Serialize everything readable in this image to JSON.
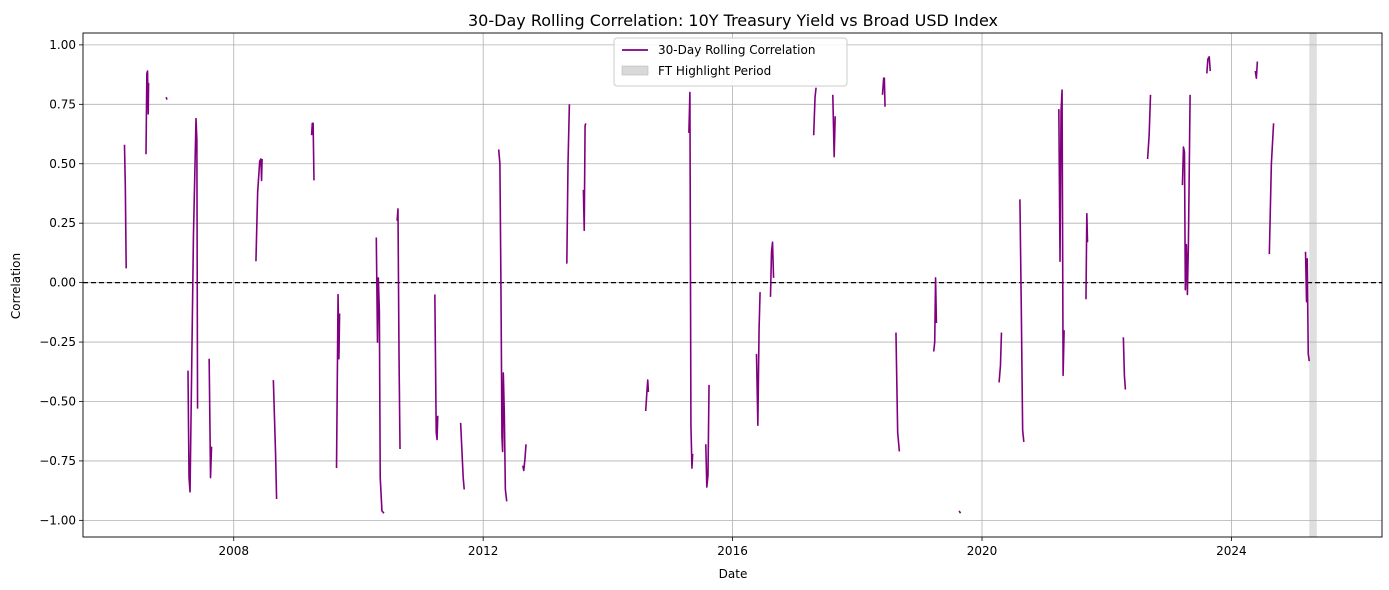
{
  "chart_data": {
    "type": "line",
    "title": "30-Day Rolling Correlation: 10Y Treasury Yield vs Broad USD Index",
    "xlabel": "Date",
    "ylabel": "Correlation",
    "xlim": [
      "2005-08-01",
      "2026-06-01"
    ],
    "ylim": [
      -1.07,
      1.05
    ],
    "x_ticks": [
      "2008",
      "2012",
      "2016",
      "2020",
      "2024"
    ],
    "y_ticks": [
      "−1.00",
      "−0.75",
      "−0.50",
      "−0.25",
      "0.00",
      "0.25",
      "0.50",
      "0.75",
      "1.00"
    ],
    "y_tick_values": [
      -1.0,
      -0.75,
      -0.5,
      -0.25,
      0.0,
      0.25,
      0.5,
      0.75,
      1.0
    ],
    "grid": true,
    "legend_position": "top-center",
    "reference_line": {
      "y": 0.0,
      "style": "dashed",
      "color": "#000000"
    },
    "highlight": {
      "name": "FT Highlight Period",
      "start": "2025-04-01",
      "end": "2025-05-15",
      "color": "#d9d9d9"
    },
    "series": [
      {
        "name": "30-Day Rolling Correlation",
        "color": "#800080",
        "segments": [
          [
            [
              "2006-04-01",
              0.58
            ],
            [
              "2006-04-06",
              0.4
            ],
            [
              "2006-04-11",
              0.06
            ]
          ],
          [
            [
              "2006-08-05",
              0.54
            ],
            [
              "2006-08-10",
              0.88
            ],
            [
              "2006-08-14",
              0.89
            ],
            [
              "2006-08-18",
              0.71
            ],
            [
              "2006-08-20",
              0.84
            ]
          ],
          [
            [
              "2006-12-01",
              0.78
            ],
            [
              "2006-12-06",
              0.77
            ]
          ],
          [
            [
              "2007-04-08",
              -0.37
            ],
            [
              "2007-04-14",
              -0.82
            ],
            [
              "2007-04-20",
              -0.88
            ],
            [
              "2007-05-10",
              0.2
            ],
            [
              "2007-05-25",
              0.69
            ],
            [
              "2007-05-30",
              0.6
            ],
            [
              "2007-06-03",
              -0.53
            ]
          ],
          [
            [
              "2007-08-10",
              -0.32
            ],
            [
              "2007-08-18",
              -0.82
            ],
            [
              "2007-08-24",
              -0.69
            ]
          ],
          [
            [
              "2008-08-20",
              -0.41
            ],
            [
              "2008-09-02",
              -0.72
            ],
            [
              "2008-09-08",
              -0.91
            ]
          ],
          [
            [
              "2008-05-10",
              0.09
            ],
            [
              "2008-05-20",
              0.38
            ],
            [
              "2008-06-01",
              0.51
            ],
            [
              "2008-06-08",
              0.52
            ],
            [
              "2008-06-12",
              0.43
            ],
            [
              "2008-06-15",
              0.52
            ]
          ],
          [
            [
              "2009-04-01",
              0.62
            ],
            [
              "2009-04-05",
              0.67
            ],
            [
              "2009-04-10",
              0.67
            ],
            [
              "2009-04-15",
              0.43
            ]
          ],
          [
            [
              "2009-08-25",
              -0.78
            ],
            [
              "2009-09-03",
              -0.05
            ],
            [
              "2009-09-08",
              -0.32
            ],
            [
              "2009-09-12",
              -0.13
            ]
          ],
          [
            [
              "2010-04-15",
              0.19
            ],
            [
              "2010-04-22",
              -0.25
            ],
            [
              "2010-04-27",
              0.02
            ],
            [
              "2010-05-03",
              -0.12
            ],
            [
              "2010-05-08",
              -0.82
            ],
            [
              "2010-05-18",
              -0.96
            ],
            [
              "2010-05-30",
              -0.97
            ]
          ],
          [
            [
              "2010-08-15",
              0.26
            ],
            [
              "2010-08-20",
              0.31
            ],
            [
              "2010-08-26",
              -0.3
            ],
            [
              "2010-09-01",
              -0.7
            ]
          ],
          [
            [
              "2011-03-24",
              -0.05
            ],
            [
              "2011-04-01",
              -0.63
            ],
            [
              "2011-04-06",
              -0.66
            ],
            [
              "2011-04-10",
              -0.56
            ]
          ],
          [
            [
              "2011-08-22",
              -0.59
            ],
            [
              "2011-09-06",
              -0.82
            ],
            [
              "2011-09-12",
              -0.87
            ]
          ],
          [
            [
              "2012-04-01",
              0.56
            ],
            [
              "2012-04-08",
              0.5
            ],
            [
              "2012-04-14",
              0.0
            ],
            [
              "2012-04-20",
              -0.65
            ],
            [
              "2012-04-24",
              -0.71
            ],
            [
              "2012-04-28",
              -0.38
            ],
            [
              "2012-05-04",
              -0.55
            ],
            [
              "2012-05-10",
              -0.87
            ],
            [
              "2012-05-18",
              -0.92
            ]
          ],
          [
            [
              "2012-08-20",
              -0.77
            ],
            [
              "2012-08-26",
              -0.79
            ],
            [
              "2012-09-02",
              -0.74
            ],
            [
              "2012-09-08",
              -0.68
            ]
          ],
          [
            [
              "2013-05-05",
              0.08
            ],
            [
              "2013-05-12",
              0.5
            ],
            [
              "2013-05-20",
              0.75
            ]
          ],
          [
            [
              "2013-08-10",
              0.39
            ],
            [
              "2013-08-15",
              0.22
            ],
            [
              "2013-08-20",
              0.66
            ],
            [
              "2013-08-24",
              0.67
            ]
          ],
          [
            [
              "2014-08-10",
              -0.54
            ],
            [
              "2014-08-18",
              -0.45
            ],
            [
              "2014-08-22",
              -0.41
            ],
            [
              "2014-08-26",
              -0.46
            ]
          ],
          [
            [
              "2015-04-20",
              0.63
            ],
            [
              "2015-04-26",
              0.8
            ],
            [
              "2015-05-02",
              -0.6
            ],
            [
              "2015-05-08",
              -0.78
            ],
            [
              "2015-05-12",
              -0.72
            ]
          ],
          [
            [
              "2015-07-28",
              -0.68
            ],
            [
              "2015-08-03",
              -0.86
            ],
            [
              "2015-08-10",
              -0.81
            ],
            [
              "2015-08-16",
              -0.43
            ]
          ],
          [
            [
              "2016-05-20",
              -0.3
            ],
            [
              "2016-05-28",
              -0.6
            ],
            [
              "2016-06-04",
              -0.2
            ],
            [
              "2016-06-10",
              -0.04
            ]
          ],
          [
            [
              "2016-08-10",
              -0.06
            ],
            [
              "2016-08-16",
              0.13
            ],
            [
              "2016-08-22",
              0.17
            ],
            [
              "2016-08-28",
              0.02
            ]
          ],
          [
            [
              "2017-04-20",
              0.62
            ],
            [
              "2017-04-28",
              0.78
            ],
            [
              "2017-05-04",
              0.82
            ]
          ],
          [
            [
              "2017-08-10",
              0.79
            ],
            [
              "2017-08-18",
              0.53
            ],
            [
              "2017-08-24",
              0.7
            ]
          ],
          [
            [
              "2018-05-28",
              0.79
            ],
            [
              "2018-06-04",
              0.86
            ],
            [
              "2018-06-08",
              0.86
            ],
            [
              "2018-06-12",
              0.74
            ]
          ],
          [
            [
              "2018-08-15",
              -0.21
            ],
            [
              "2018-08-25",
              -0.63
            ],
            [
              "2018-09-04",
              -0.71
            ]
          ],
          [
            [
              "2019-03-24",
              -0.29
            ],
            [
              "2019-03-30",
              -0.25
            ],
            [
              "2019-04-04",
              0.02
            ],
            [
              "2019-04-09",
              -0.17
            ]
          ],
          [
            [
              "2019-08-20",
              -0.96
            ],
            [
              "2019-08-28",
              -0.97
            ]
          ],
          [
            [
              "2020-04-10",
              -0.42
            ],
            [
              "2020-04-18",
              -0.35
            ],
            [
              "2020-04-24",
              -0.21
            ]
          ],
          [
            [
              "2020-08-10",
              0.35
            ],
            [
              "2020-08-18",
              -0.1
            ],
            [
              "2020-08-26",
              -0.62
            ],
            [
              "2020-09-02",
              -0.67
            ]
          ],
          [
            [
              "2021-03-26",
              0.73
            ],
            [
              "2021-04-02",
              0.09
            ],
            [
              "2021-04-08",
              0.72
            ],
            [
              "2021-04-14",
              0.81
            ],
            [
              "2021-04-20",
              -0.39
            ],
            [
              "2021-04-26",
              -0.2
            ]
          ],
          [
            [
              "2021-09-01",
              -0.07
            ],
            [
              "2021-09-06",
              0.29
            ],
            [
              "2021-09-10",
              0.17
            ]
          ],
          [
            [
              "2022-04-08",
              -0.23
            ],
            [
              "2022-04-14",
              -0.39
            ],
            [
              "2022-04-20",
              -0.45
            ]
          ],
          [
            [
              "2022-08-28",
              0.52
            ],
            [
              "2022-09-06",
              0.62
            ],
            [
              "2022-09-14",
              0.79
            ]
          ],
          [
            [
              "2023-03-20",
              0.41
            ],
            [
              "2023-03-26",
              0.57
            ],
            [
              "2023-04-01",
              0.55
            ],
            [
              "2023-04-06",
              -0.03
            ],
            [
              "2023-04-12",
              0.16
            ],
            [
              "2023-04-18",
              -0.05
            ],
            [
              "2023-04-24",
              0.16
            ],
            [
              "2023-05-04",
              0.79
            ]
          ],
          [
            [
              "2023-08-10",
              0.88
            ],
            [
              "2023-08-16",
              0.94
            ],
            [
              "2023-08-24",
              0.95
            ],
            [
              "2023-08-30",
              0.89
            ]
          ],
          [
            [
              "2024-05-20",
              0.89
            ],
            [
              "2024-05-26",
              0.86
            ],
            [
              "2024-06-01",
              0.93
            ]
          ],
          [
            [
              "2024-08-10",
              0.12
            ],
            [
              "2024-08-22",
              0.5
            ],
            [
              "2024-09-04",
              0.67
            ]
          ],
          [
            [
              "2025-03-10",
              0.13
            ],
            [
              "2025-03-16",
              -0.08
            ],
            [
              "2025-03-20",
              0.1
            ],
            [
              "2025-03-26",
              -0.3
            ],
            [
              "2025-04-01",
              -0.33
            ]
          ]
        ]
      }
    ]
  }
}
